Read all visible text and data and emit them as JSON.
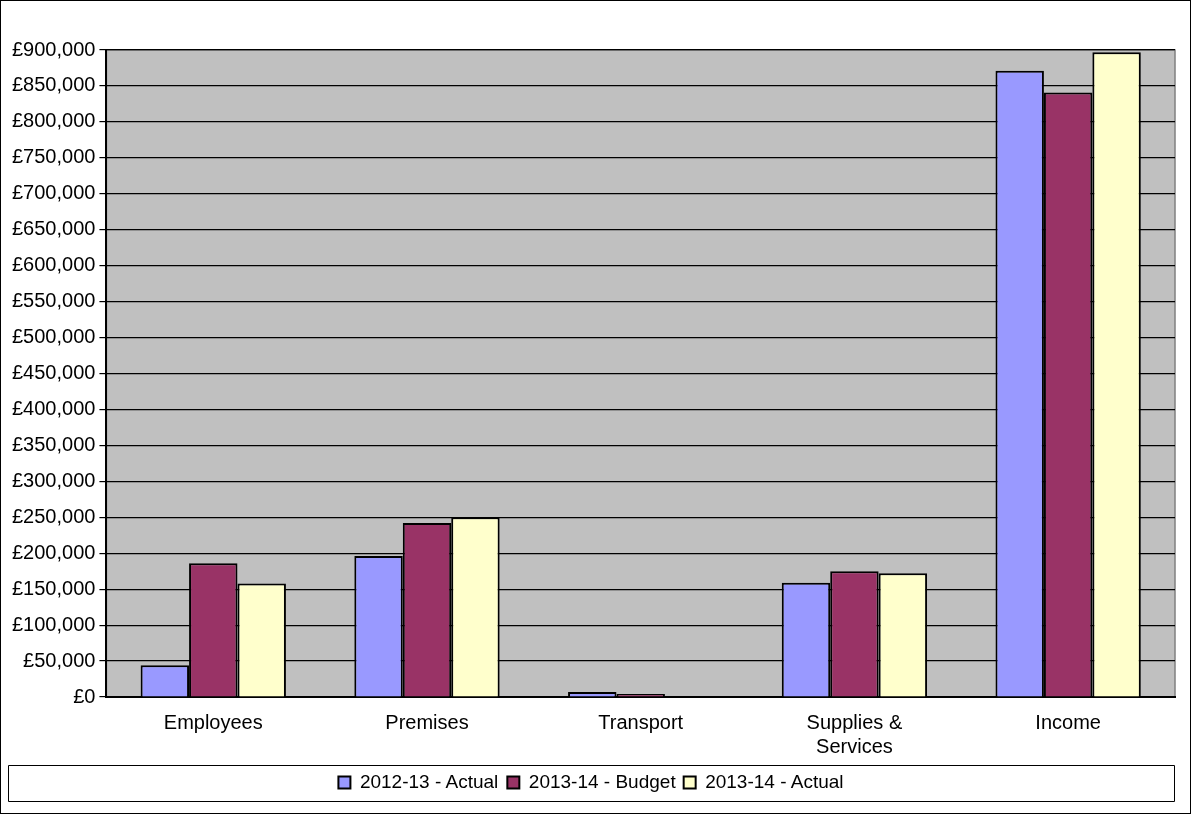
{
  "chart_data": {
    "type": "bar",
    "categories": [
      "Employees",
      "Premises",
      "Transport",
      "Supplies & Services",
      "Income"
    ],
    "series": [
      {
        "name": "2012-13 - Actual",
        "color": "#9999ff",
        "values": [
          44000,
          196000,
          7000,
          159000,
          871000
        ]
      },
      {
        "name": "2013-14 - Budget",
        "color": "#993366",
        "values": [
          186000,
          242000,
          4000,
          175000,
          841000
        ]
      },
      {
        "name": "2013-14 - Actual",
        "color": "#ffffcc",
        "values": [
          158000,
          250000,
          null,
          172000,
          897000
        ]
      }
    ],
    "ylim": [
      0,
      900000
    ],
    "yticks": [
      {
        "value": 0,
        "label": "£0"
      },
      {
        "value": 50000,
        "label": "£50,000"
      },
      {
        "value": 100000,
        "label": "£100,000"
      },
      {
        "value": 150000,
        "label": "£150,000"
      },
      {
        "value": 200000,
        "label": "£200,000"
      },
      {
        "value": 250000,
        "label": "£250,000"
      },
      {
        "value": 300000,
        "label": "£300,000"
      },
      {
        "value": 350000,
        "label": "£350,000"
      },
      {
        "value": 400000,
        "label": "£400,000"
      },
      {
        "value": 450000,
        "label": "£450,000"
      },
      {
        "value": 500000,
        "label": "£500,000"
      },
      {
        "value": 550000,
        "label": "£550,000"
      },
      {
        "value": 600000,
        "label": "£600,000"
      },
      {
        "value": 650000,
        "label": "£650,000"
      },
      {
        "value": 700000,
        "label": "£700,000"
      },
      {
        "value": 750000,
        "label": "£750,000"
      },
      {
        "value": 800000,
        "label": "£800,000"
      },
      {
        "value": 850000,
        "label": "£850,000"
      },
      {
        "value": 900000,
        "label": "£900,000"
      }
    ],
    "grid": "y",
    "legend": "bottom"
  }
}
